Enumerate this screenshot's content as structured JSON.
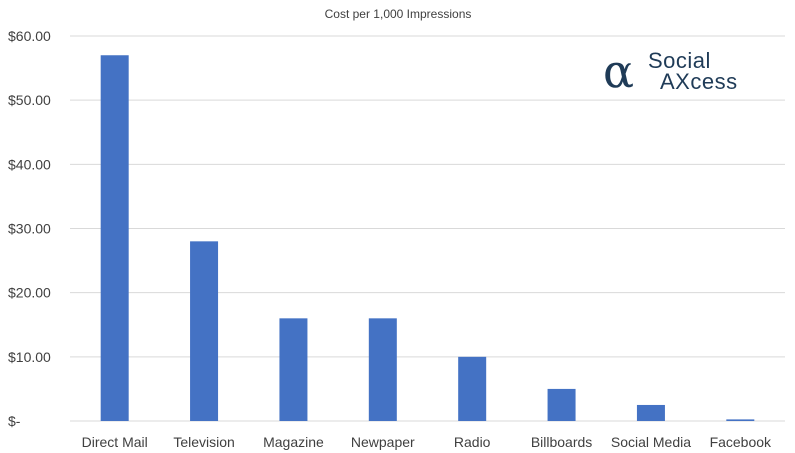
{
  "chart_data": {
    "type": "bar",
    "title": "Cost per 1,000 Impressions",
    "xlabel": "",
    "ylabel": "",
    "categories": [
      "Direct Mail",
      "Television",
      "Magazine",
      "Newpaper",
      "Radio",
      "Billboards",
      "Social Media",
      "Facebook"
    ],
    "values": [
      57.0,
      28.0,
      16.0,
      16.0,
      10.0,
      5.0,
      2.5,
      0.25
    ],
    "ylim": [
      0,
      60
    ],
    "yticks": [
      0,
      10,
      20,
      30,
      40,
      50,
      60
    ],
    "ytick_labels": [
      "$-",
      "$10.00",
      "$20.00",
      "$30.00",
      "$40.00",
      "$50.00",
      "$60.00"
    ],
    "grid": true,
    "bar_color": "#4472c4"
  },
  "logo": {
    "line1": "Social",
    "line2": "AXcess",
    "symbol": "α",
    "color": "#1f3b57"
  }
}
